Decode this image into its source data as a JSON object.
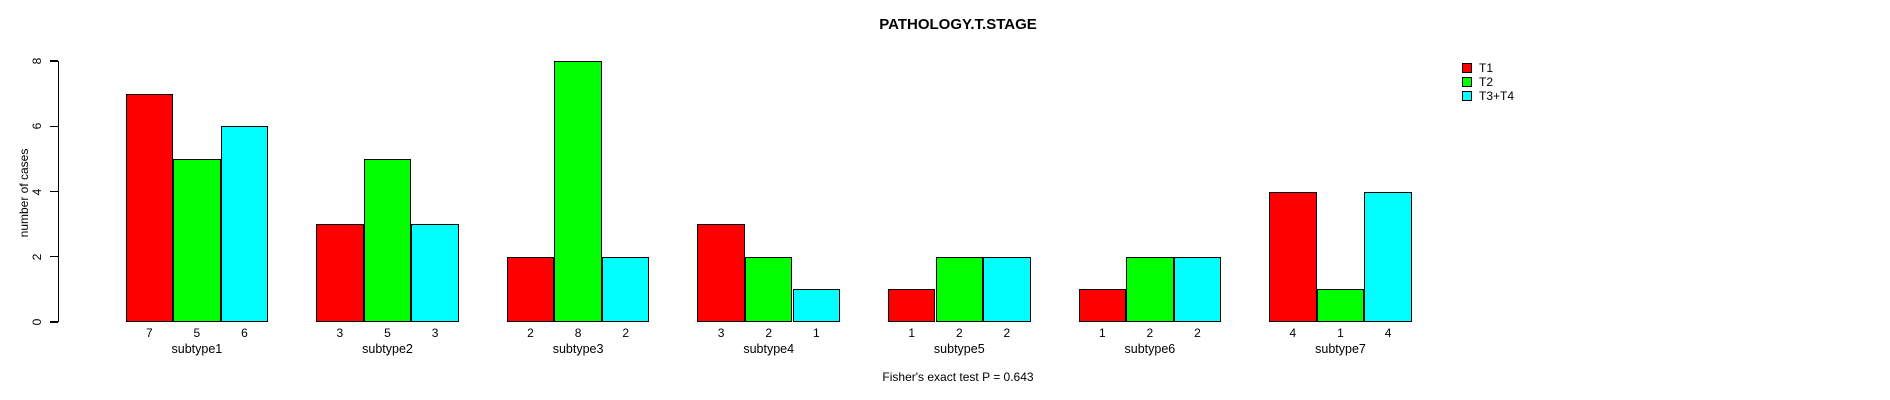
{
  "chart_data": {
    "type": "bar",
    "title": "PATHOLOGY.T.STAGE",
    "ylabel": "number of cases",
    "xlabel": "",
    "ylim": [
      0,
      8
    ],
    "yticks": [
      "0",
      "2",
      "4",
      "6",
      "8"
    ],
    "grid": false,
    "legend_position": "top-right",
    "categories": [
      "subtype1",
      "subtype2",
      "subtype3",
      "subtype4",
      "subtype5",
      "subtype6",
      "subtype7"
    ],
    "series": [
      {
        "name": "T1",
        "color": "#ff0000",
        "values": [
          7,
          3,
          2,
          3,
          1,
          1,
          4
        ]
      },
      {
        "name": "T2",
        "color": "#00ff00",
        "values": [
          5,
          5,
          8,
          2,
          2,
          2,
          1
        ]
      },
      {
        "name": "T3+T4",
        "color": "#00ffff",
        "values": [
          6,
          3,
          2,
          1,
          2,
          2,
          4
        ]
      }
    ],
    "bar_value_labels": [
      [
        7,
        5,
        6
      ],
      [
        3,
        5,
        3
      ],
      [
        2,
        8,
        2
      ],
      [
        3,
        2,
        1
      ],
      [
        1,
        2,
        2
      ],
      [
        1,
        2,
        2
      ],
      [
        4,
        1,
        4
      ]
    ],
    "footnote": "Fisher's exact test P = 0.643"
  },
  "colors": {
    "background": "#ffffff",
    "axis": "#000000",
    "text": "#000000"
  }
}
